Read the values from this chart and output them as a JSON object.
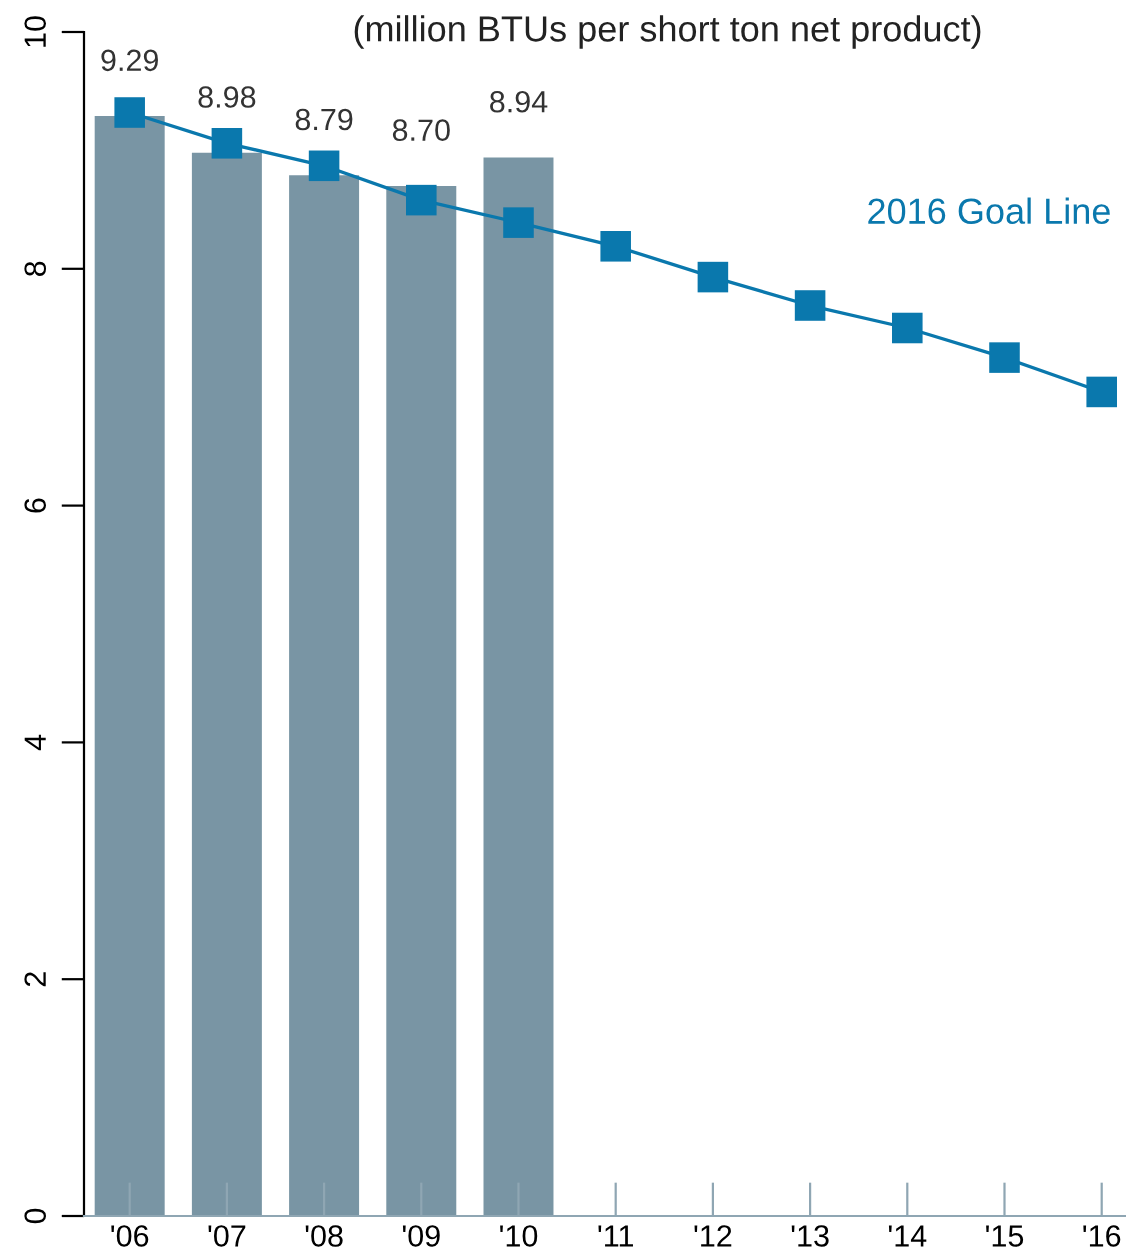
{
  "chart_data": {
    "type": "bar",
    "title": "(million BTUs per short ton net product)",
    "categories": [
      "'06",
      "'07",
      "'08",
      "'09",
      "'10",
      "'11",
      "'12",
      "'13",
      "'14",
      "'15",
      "'16"
    ],
    "series": [
      {
        "color": "#7995a4",
        "values": [
          9.29,
          8.98,
          8.79,
          8.7,
          8.94,
          null,
          null,
          null,
          null,
          null,
          null
        ],
        "value_labels": [
          "9.29",
          "8.98",
          "8.79",
          "8.70",
          "8.94",
          null,
          null,
          null,
          null,
          null,
          null
        ]
      },
      {
        "type": "line",
        "name": "2016 Goal Line",
        "color": "#0a78ad",
        "marker": "square",
        "line_style": "solid",
        "values": [
          9.32,
          9.06,
          8.87,
          8.58,
          8.39,
          8.19,
          7.93,
          7.69,
          7.5,
          7.25,
          6.96
        ]
      }
    ],
    "ylim": [
      0,
      10
    ],
    "yticks": [
      0,
      2,
      4,
      6,
      8,
      10
    ],
    "grid": false,
    "legend": false
  }
}
